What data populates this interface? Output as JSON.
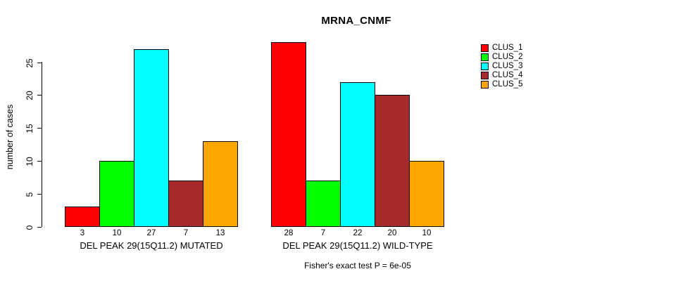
{
  "chart_data": {
    "type": "bar",
    "title": "MRNA_CNMF",
    "ylabel": "number of cases",
    "xlabel": "",
    "ylim": [
      0,
      28
    ],
    "yticks": [
      0,
      5,
      10,
      15,
      20,
      25
    ],
    "grid": false,
    "legend_position": "right-outside",
    "series_names": [
      "CLUS_1",
      "CLUS_2",
      "CLUS_3",
      "CLUS_4",
      "CLUS_5"
    ],
    "colors": [
      "#FF0000",
      "#00FF00",
      "#00FFFF",
      "#A52A2A",
      "#FFA500"
    ],
    "border_color": "#000000",
    "groups": [
      {
        "label": "DEL PEAK 29(15Q11.2) MUTATED",
        "values": [
          3,
          10,
          27,
          7,
          13
        ]
      },
      {
        "label": "DEL PEAK 29(15Q11.2) WILD-TYPE",
        "values": [
          28,
          7,
          22,
          20,
          10
        ]
      }
    ],
    "footnote": "Fisher's exact test P = 6e-05"
  }
}
